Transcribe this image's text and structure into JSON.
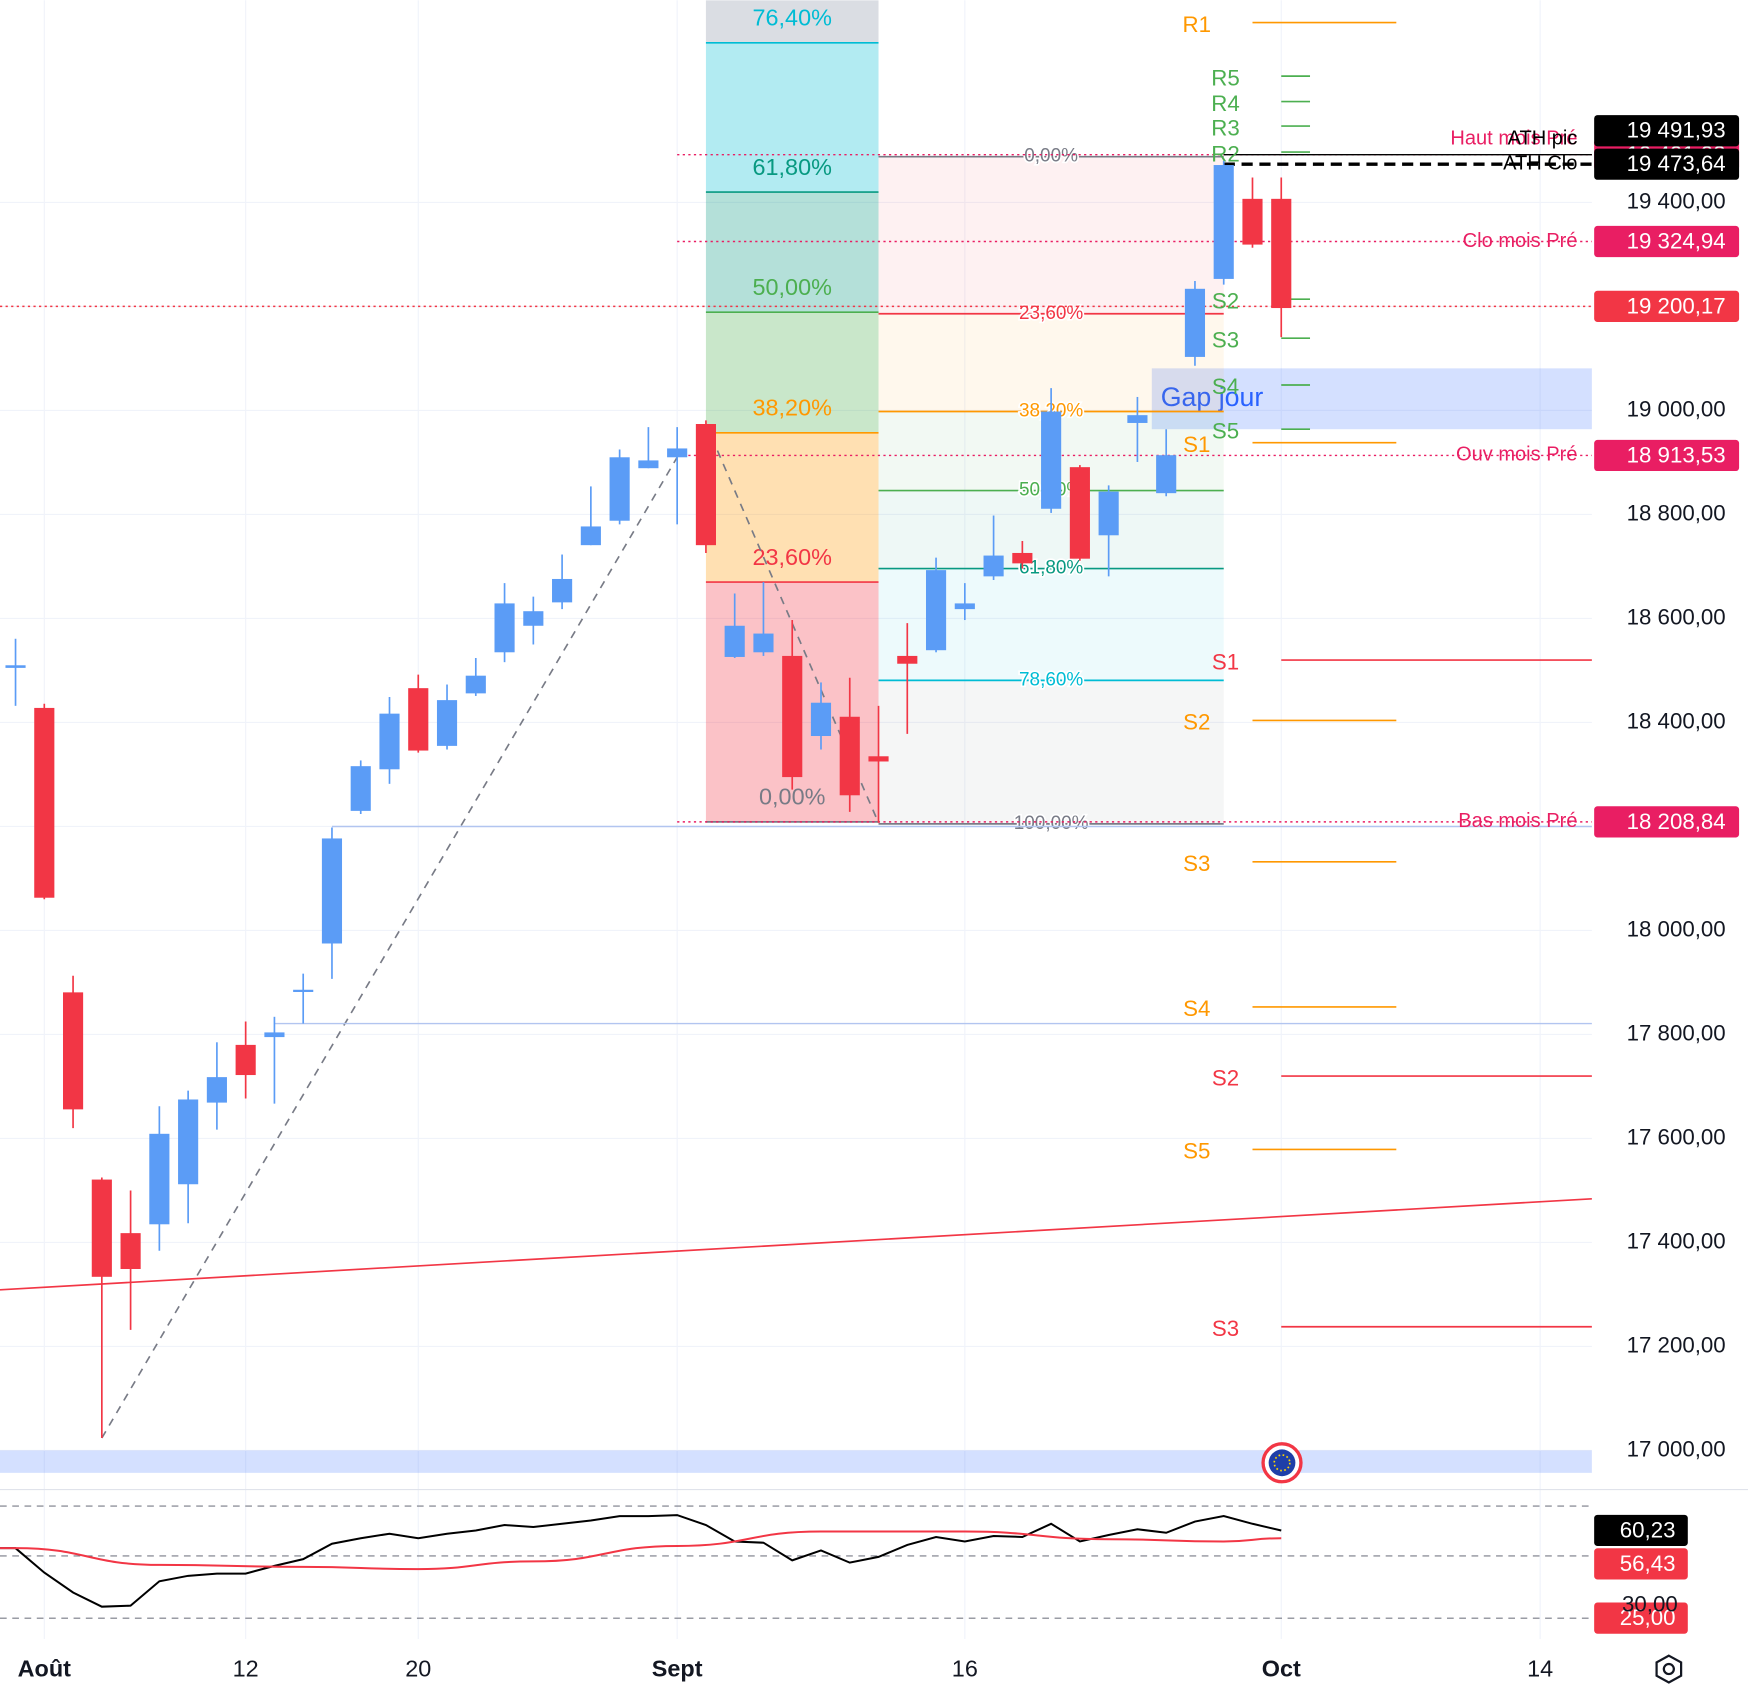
{
  "chart_data": {
    "type": "candlestick",
    "x": [
      0,
      1,
      2,
      3,
      4,
      5,
      6,
      7,
      8,
      9,
      10,
      11,
      12,
      13,
      14,
      15,
      16,
      17,
      18,
      19,
      20,
      21,
      22,
      23,
      24,
      25,
      26,
      27,
      28,
      29,
      30,
      31,
      32,
      33,
      34,
      35,
      36,
      37,
      38,
      39,
      40,
      41,
      42,
      43,
      44
    ],
    "open": [
      18505,
      18428,
      17881,
      17521,
      17418,
      17435,
      17512,
      17669,
      17780,
      17795,
      17883,
      17975,
      18230,
      18310,
      18466,
      18355,
      18456,
      18535,
      18586,
      18631,
      18741,
      18788,
      18889,
      18910,
      18974,
      18526,
      18535,
      18528,
      18374,
      18411,
      18335,
      18528,
      18539,
      18618,
      18681,
      18726,
      18811,
      18891,
      18760,
      18976,
      18841,
      19103,
      19253,
      19407,
      19407
    ],
    "high": [
      18561,
      18436,
      17913,
      17525,
      17500,
      17662,
      17692,
      17785,
      17825,
      17834,
      17917,
      18198,
      18327,
      18449,
      18492,
      18473,
      18524,
      18668,
      18642,
      18723,
      18854,
      18925,
      18968,
      18968,
      18981,
      18648,
      18670,
      18597,
      18477,
      18486,
      18432,
      18591,
      18717,
      18668,
      18798,
      18749,
      19043,
      18895,
      18856,
      19026,
      18964,
      19249,
      19480,
      19448,
      19448
    ],
    "low": [
      18432,
      18060,
      17620,
      17024,
      17232,
      17384,
      17437,
      17617,
      17677,
      17667,
      17821,
      17907,
      18224,
      18282,
      18342,
      18348,
      18451,
      18516,
      18550,
      18618,
      18741,
      18781,
      18889,
      18781,
      18726,
      18524,
      18528,
      18271,
      18348,
      18228,
      18207,
      18378,
      18535,
      18597,
      18674,
      18696,
      18803,
      18711,
      18681,
      18901,
      18835,
      19086,
      19242,
      19313,
      19141
    ],
    "close": [
      18510,
      18063,
      17656,
      17334,
      17349,
      17609,
      17675,
      17718,
      17722,
      17804,
      17886,
      18177,
      18316,
      18417,
      18346,
      18443,
      18490,
      18629,
      18614,
      18676,
      18777,
      18910,
      18904,
      18927,
      18741,
      18586,
      18571,
      18295,
      18438,
      18260,
      18325,
      18513,
      18693,
      18629,
      18721,
      18706,
      18998,
      18715,
      18844,
      18991,
      18914,
      19234,
      19472,
      19319,
      19197
    ],
    "up_color": "#5b9cf6",
    "down_color": "#f23645",
    "xlim": [
      -0.54,
      54.8
    ],
    "xticks": [
      {
        "value": 1,
        "label": "Août"
      },
      {
        "value": 8,
        "label": "12"
      },
      {
        "value": 14,
        "label": "20"
      },
      {
        "value": 23,
        "label": "Sept"
      },
      {
        "value": 33,
        "label": "16"
      },
      {
        "value": 44,
        "label": "Oct"
      },
      {
        "value": 53,
        "label": "14"
      }
    ],
    "ylim": [
      16927,
      19789
    ],
    "yticks": [
      {
        "value": 17000,
        "label": "17 000,00"
      },
      {
        "value": 17200,
        "label": "17 200,00"
      },
      {
        "value": 17400,
        "label": "17 400,00"
      },
      {
        "value": 17600,
        "label": "17 600,00"
      },
      {
        "value": 17800,
        "label": "17 800,00"
      },
      {
        "value": 18000,
        "label": "18 000,00"
      },
      {
        "value": 18200,
        "label": "18 200,00"
      },
      {
        "value": 18400,
        "label": "18 400,00"
      },
      {
        "value": 18600,
        "label": "18 600,00"
      },
      {
        "value": 18800,
        "label": "18 800,00"
      },
      {
        "value": 19000,
        "label": "19 000,00"
      },
      {
        "value": 19200,
        "label": "19 200,00"
      },
      {
        "value": 19400,
        "label": "19 400,00"
      }
    ],
    "price_labels": [
      {
        "value": 19491.93,
        "label": "19 491,93",
        "color": "#e91e63"
      },
      {
        "value": 19491.93,
        "label": "19 491,93",
        "color": "#000000"
      },
      {
        "value": 19473.64,
        "label": "19 473,64",
        "color": "#000000"
      },
      {
        "value": 19324.94,
        "label": "19 324,94",
        "color": "#e91e63"
      },
      {
        "value": 19200.17,
        "label": "19 200,17",
        "color": "#f23645"
      },
      {
        "value": 18913.53,
        "label": "18 913,53",
        "color": "#e91e63"
      },
      {
        "value": 18208.84,
        "label": "18 208,84",
        "color": "#e91e63"
      }
    ],
    "levels": [
      {
        "name": "Haut mois Pré",
        "value": 19491.93,
        "color": "#e91e63",
        "style": "dotted",
        "start": 23
      },
      {
        "name": "ATH pic",
        "value": 19491.93,
        "color": "#000000",
        "style": "solid",
        "start": 42
      },
      {
        "name": "ATH Clo",
        "value": 19473.64,
        "color": "#000000",
        "style": "dashed",
        "start": 42
      },
      {
        "name": "Clo mois Pré",
        "value": 19324.94,
        "color": "#e91e63",
        "style": "dotted",
        "start": 23
      },
      {
        "value": 19200.17,
        "color": "#f23645",
        "style": "dotted",
        "start": -0.54
      },
      {
        "name": "Ouv mois Pré",
        "value": 18913.53,
        "color": "#e91e63",
        "style": "dotted",
        "start": 23
      },
      {
        "name": "Bas mois Pré",
        "value": 18208.84,
        "color": "#e91e63",
        "style": "dotted",
        "start": 23
      },
      {
        "value": 18200,
        "color": "#b2c5f0",
        "style": "solid",
        "start": 11
      },
      {
        "value": 17821,
        "color": "#b2c5f0",
        "style": "solid",
        "start": 9
      }
    ],
    "fibs": [
      {
        "x": [
          24,
          30
        ],
        "fill_opacity": 0.3,
        "label_pos": "above",
        "levels": [
          {
            "label": "0,00%",
            "price": 18208.84,
            "color": "#787b86"
          },
          {
            "label": "23,60%",
            "price": 18670,
            "color": "#f23645"
          },
          {
            "label": "38,20%",
            "price": 18957,
            "color": "#ff9800"
          },
          {
            "label": "50,00%",
            "price": 19189,
            "color": "#4caf50"
          },
          {
            "label": "61,80%",
            "price": 19420,
            "color": "#089981"
          },
          {
            "label": "76,40%",
            "price": 19707,
            "color": "#00bcd4"
          }
        ]
      },
      {
        "x": [
          30,
          42
        ],
        "fill_opacity": 0.07,
        "label_pos": "on",
        "levels": [
          {
            "label": "0,00%",
            "price": 19488,
            "color": "#787b86"
          },
          {
            "label": "23,60%",
            "price": 19186,
            "color": "#f23645"
          },
          {
            "label": "38,20%",
            "price": 18998,
            "color": "#ff9800"
          },
          {
            "label": "50,00%",
            "price": 18846,
            "color": "#4caf50"
          },
          {
            "label": "61,80%",
            "price": 18696,
            "color": "#089981"
          },
          {
            "label": "78,60%",
            "price": 18481,
            "color": "#00bcd4"
          },
          {
            "label": "100,00%",
            "price": 18205,
            "color": "#787b86"
          }
        ]
      }
    ],
    "pivots": [
      {
        "color": "#ff9800",
        "x": [
          43,
          48
        ],
        "levels": [
          {
            "label": "R1",
            "value": 19746
          },
          {
            "label": "S1",
            "value": 18938
          },
          {
            "label": "S2",
            "value": 18404
          },
          {
            "label": "S3",
            "value": 18132
          },
          {
            "label": "S4",
            "value": 17853
          },
          {
            "label": "S5",
            "value": 17579
          }
        ]
      },
      {
        "color": "#f23645",
        "x": [
          44,
          54.8
        ],
        "levels": [
          {
            "label": "S1",
            "value": 18520
          },
          {
            "label": "S2",
            "value": 17720
          },
          {
            "label": "S3",
            "value": 17238
          }
        ]
      },
      {
        "color": "#4caf50",
        "x": [
          44,
          45
        ],
        "levels": [
          {
            "label": "R5",
            "value": 19643
          },
          {
            "label": "R4",
            "value": 19594
          },
          {
            "label": "R3",
            "value": 19547
          },
          {
            "label": "R2",
            "value": 19497
          },
          {
            "label": "S2",
            "value": 19214
          },
          {
            "label": "S3",
            "value": 19139
          },
          {
            "label": "S4",
            "value": 19049
          },
          {
            "label": "S5",
            "value": 18964
          }
        ]
      }
    ],
    "zones": [
      {
        "label": "Gap jour",
        "x": [
          39.5,
          54.8
        ],
        "price": [
          18964,
          19081
        ],
        "color": "#2962ff"
      },
      {
        "x": [
          -0.54,
          54.8
        ],
        "price": [
          16957,
          17000
        ],
        "color": "#2962ff"
      }
    ],
    "trendlines": [
      {
        "from": [
          -0.54,
          17309
        ],
        "to": [
          54.8,
          17484
        ],
        "color": "#f23645",
        "dash": false
      },
      {
        "from": [
          3,
          17024
        ],
        "to": [
          23,
          18910
        ],
        "color": "#787b86",
        "dash": true
      },
      {
        "from": [
          24,
          18974
        ],
        "to": [
          30,
          18207
        ],
        "color": "#787b86",
        "dash": true
      }
    ],
    "rsi": {
      "ylim": [
        14.4,
        76.2
      ],
      "yticks": [
        {
          "value": 30,
          "label": "30,00"
        }
      ],
      "levels": [
        70,
        50,
        25
      ],
      "series": [
        {
          "color": "#000000",
          "values": [
            53.1,
            43.3,
            35.3,
            29.6,
            30.0,
            39.8,
            42.0,
            42.9,
            42.9,
            46.0,
            48.7,
            54.9,
            57.1,
            58.9,
            57.1,
            58.9,
            60.2,
            62.4,
            61.6,
            62.9,
            64.2,
            66.0,
            66.0,
            66.4,
            62.4,
            55.8,
            55.3,
            48.2,
            52.2,
            47.3,
            49.6,
            54.4,
            57.6,
            55.8,
            58.0,
            57.6,
            62.9,
            55.8,
            58.4,
            60.7,
            59.3,
            63.8,
            66.0,
            62.9,
            60.2
          ]
        },
        {
          "color": "#f23645",
          "x": [
            0,
            5,
            10,
            14,
            18,
            23,
            28,
            33,
            38,
            42,
            44
          ],
          "values": [
            53.1,
            46.4,
            45.6,
            44.7,
            47.8,
            54.0,
            59.8,
            59.8,
            56.7,
            55.8,
            57.1
          ]
        }
      ],
      "price_labels": [
        {
          "value": 60.23,
          "label": "60,23",
          "color": "#000000"
        },
        {
          "value": 56.43,
          "label": "56,43",
          "color": "#f23645"
        },
        {
          "value": 25,
          "label": "25,00",
          "color": "#f23645"
        }
      ]
    }
  }
}
